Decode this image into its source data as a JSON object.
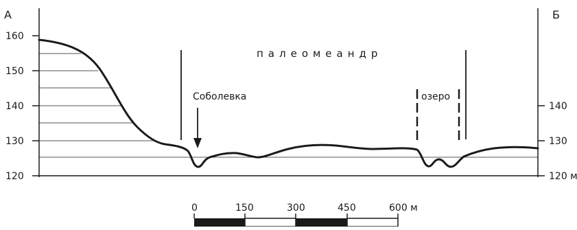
{
  "corners": {
    "left": "А",
    "right": "Б"
  },
  "left_axis": {
    "ticks": [
      "160",
      "150",
      "140",
      "130",
      "120"
    ]
  },
  "right_axis": {
    "ticks": [
      "140",
      "130",
      "120 м"
    ]
  },
  "labels": {
    "paleomeander": "палеомеандр",
    "village": "Соболевка",
    "lake": "озеро"
  },
  "scale_bar": {
    "ticks": [
      "0",
      "150",
      "300",
      "450",
      "600 м"
    ]
  },
  "colors": {
    "ink": "#1a1a1a",
    "hatch": "#555555",
    "background": "#ffffff"
  }
}
